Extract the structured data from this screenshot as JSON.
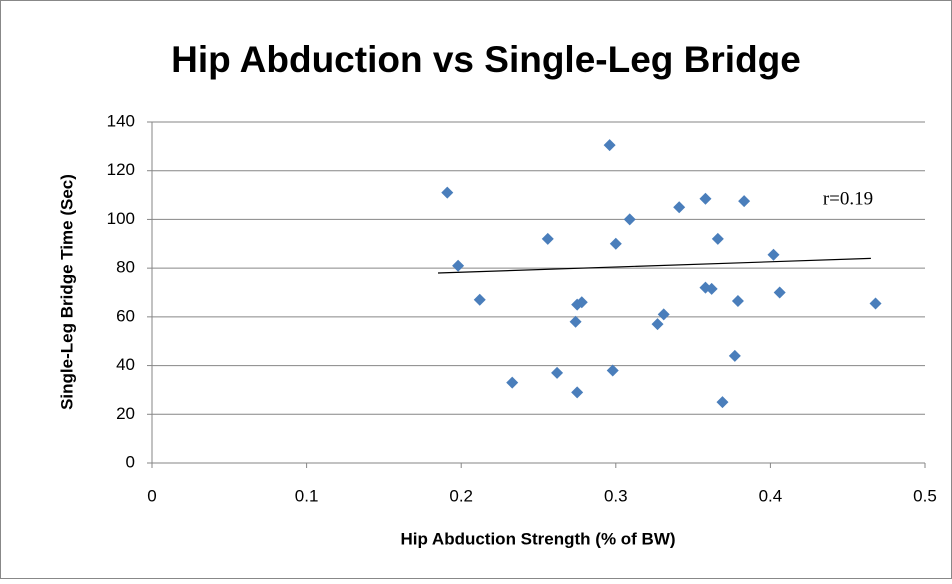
{
  "chart_data": {
    "type": "scatter",
    "title": "Hip Abduction vs Single-Leg Bridge",
    "x_label": "Hip Abduction Strength (% of BW)",
    "y_label": "Single-Leg Bridge Time (Sec)",
    "annotation": "r=0.19",
    "series": [
      {
        "name": "Single-Leg Bridge Time",
        "color": "#4a7ebb",
        "x": [
          0.191,
          0.198,
          0.212,
          0.233,
          0.256,
          0.262,
          0.274,
          0.275,
          0.275,
          0.278,
          0.296,
          0.298,
          0.3,
          0.309,
          0.327,
          0.331,
          0.341,
          0.358,
          0.358,
          0.362,
          0.366,
          0.369,
          0.377,
          0.379,
          0.383,
          0.402,
          0.406,
          0.468
        ],
        "values": [
          111,
          81,
          67,
          33,
          92,
          37,
          58,
          65,
          29,
          66,
          130.5,
          38,
          90,
          100,
          57,
          61,
          105,
          108.5,
          72,
          71.5,
          92,
          25,
          44,
          66.5,
          107.5,
          85.5,
          70,
          65.5
        ]
      }
    ],
    "trendline": {
      "x": [
        0.185,
        0.465
      ],
      "values": [
        78,
        84
      ],
      "color": "#000000"
    },
    "xlim": [
      0,
      0.5
    ],
    "xticks": [
      0,
      0.1,
      0.2,
      0.3,
      0.4,
      0.5
    ],
    "ylim": [
      0,
      140
    ],
    "yticks": [
      0,
      20,
      40,
      60,
      80,
      100,
      120,
      140
    ],
    "grid": true
  }
}
